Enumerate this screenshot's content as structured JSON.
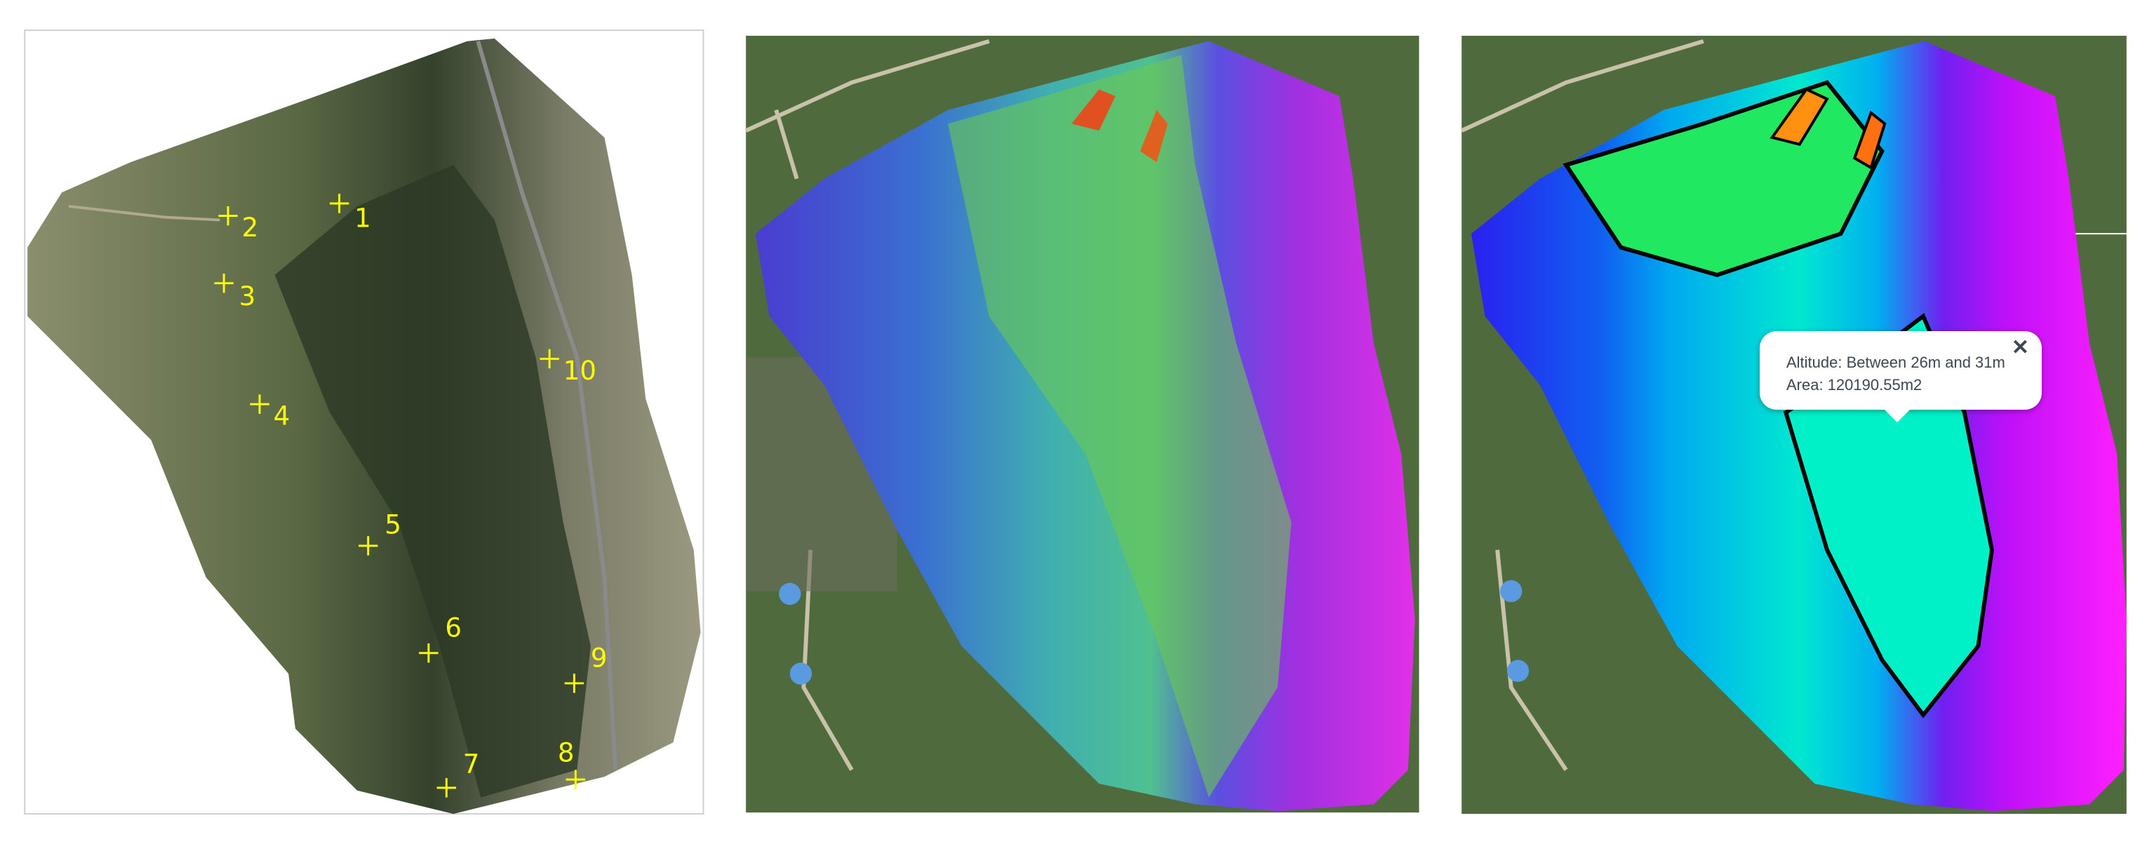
{
  "panels": [
    {
      "name": "orthophoto",
      "markers": [
        "1",
        "2",
        "3",
        "4",
        "5",
        "6",
        "7",
        "8",
        "9",
        "10"
      ],
      "marker_color": "#ffff00"
    },
    {
      "name": "elevation-model"
    },
    {
      "name": "elevation-contours"
    }
  ],
  "tooltip": {
    "line1": "Altitude: Between 26m and 31m",
    "line2": "Area: 120190.55m2",
    "close": "✕"
  },
  "colors": {
    "low": "#2a20e8",
    "mid": "#00f0c8",
    "high": "#ff20ff",
    "peak": "#ff3000"
  }
}
